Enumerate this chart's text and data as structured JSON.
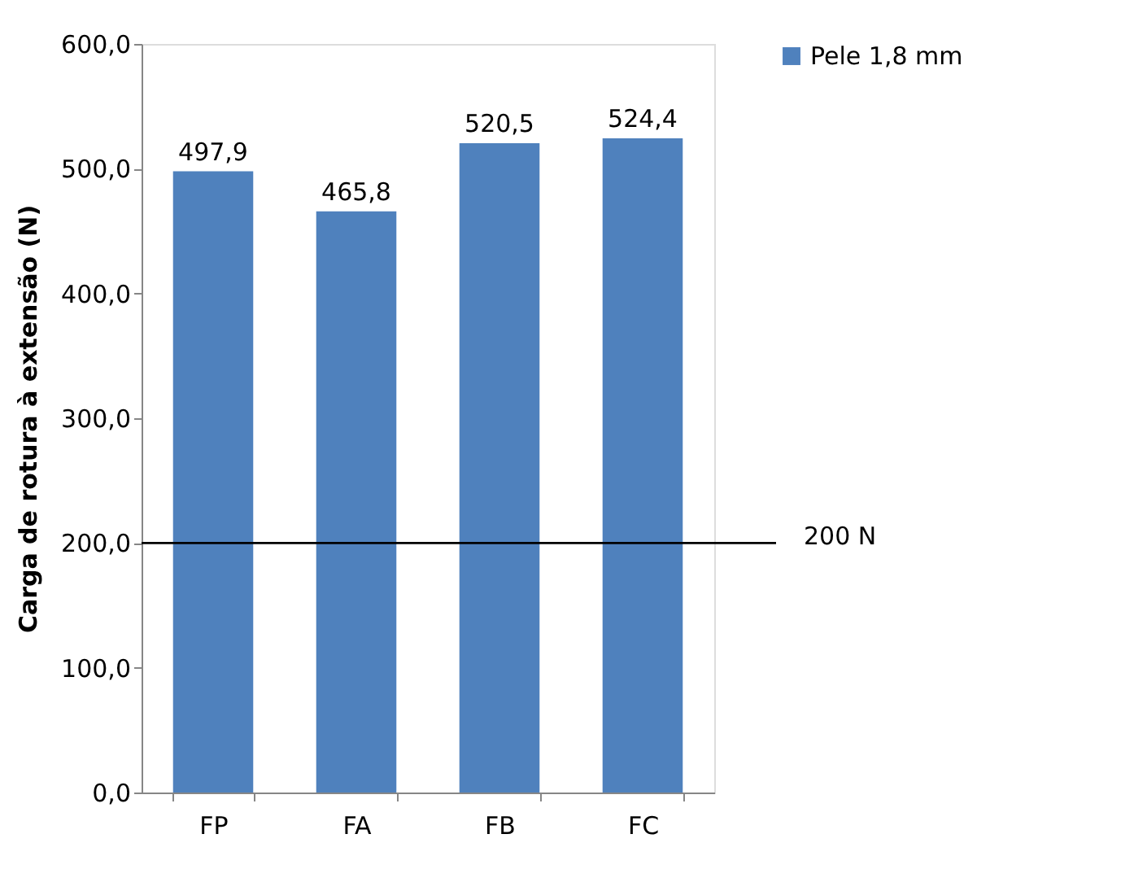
{
  "chart_data": {
    "type": "bar",
    "ylabel": "Carga de rotura à extensão (N)",
    "categories": [
      "FP",
      "FA",
      "FB",
      "FC"
    ],
    "series": [
      {
        "name": "Pele 1,8 mm",
        "color": "#4f81bd",
        "values": [
          497.9,
          465.8,
          520.5,
          524.4
        ],
        "value_labels": [
          "497,9",
          "465,8",
          "520,5",
          "524,4"
        ]
      }
    ],
    "ylim": [
      0,
      600
    ],
    "yticks": [
      {
        "value": 0,
        "label": "0,0"
      },
      {
        "value": 100,
        "label": "100,0"
      },
      {
        "value": 200,
        "label": "200,0"
      },
      {
        "value": 300,
        "label": "300,0"
      },
      {
        "value": 400,
        "label": "400,0"
      },
      {
        "value": 500,
        "label": "500,0"
      },
      {
        "value": 600,
        "label": "600,0"
      }
    ],
    "ref_lines": [
      {
        "axis": "y",
        "value": 200,
        "label": "200 N",
        "color": "#000000"
      }
    ],
    "grid": false,
    "legend": "right"
  }
}
